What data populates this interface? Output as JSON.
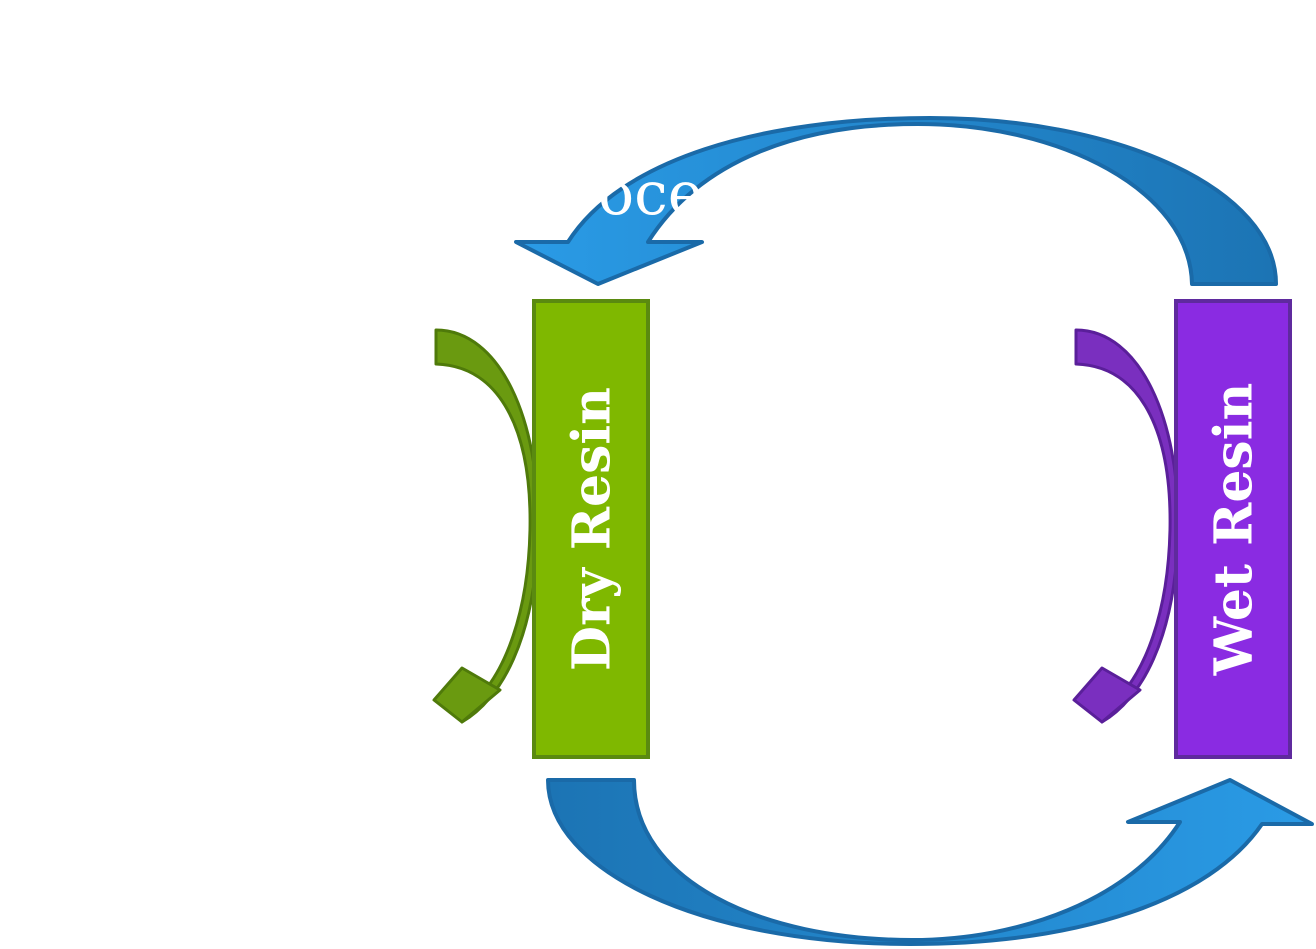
{
  "boxes": {
    "dry": {
      "label": "Dry Resin",
      "fill": "#7fb800",
      "stroke": "#5a8a10"
    },
    "wet": {
      "label": "Wet Resin",
      "fill": "#8a2be2",
      "stroke": "#5f2a9e"
    }
  },
  "arrows": {
    "top_arc": {
      "visible_text_fragment": "oce",
      "fill": "#2596e0",
      "stroke": "#1a6aa8"
    },
    "bottom_arc": {
      "fill": "#2596e0",
      "stroke": "#1a6aa8"
    },
    "green_side_arc": {
      "fill": "#6a9a10",
      "stroke": "#4f7a0a"
    },
    "purple_side_arc": {
      "fill": "#7a2fbf",
      "stroke": "#5a1f9a"
    }
  }
}
